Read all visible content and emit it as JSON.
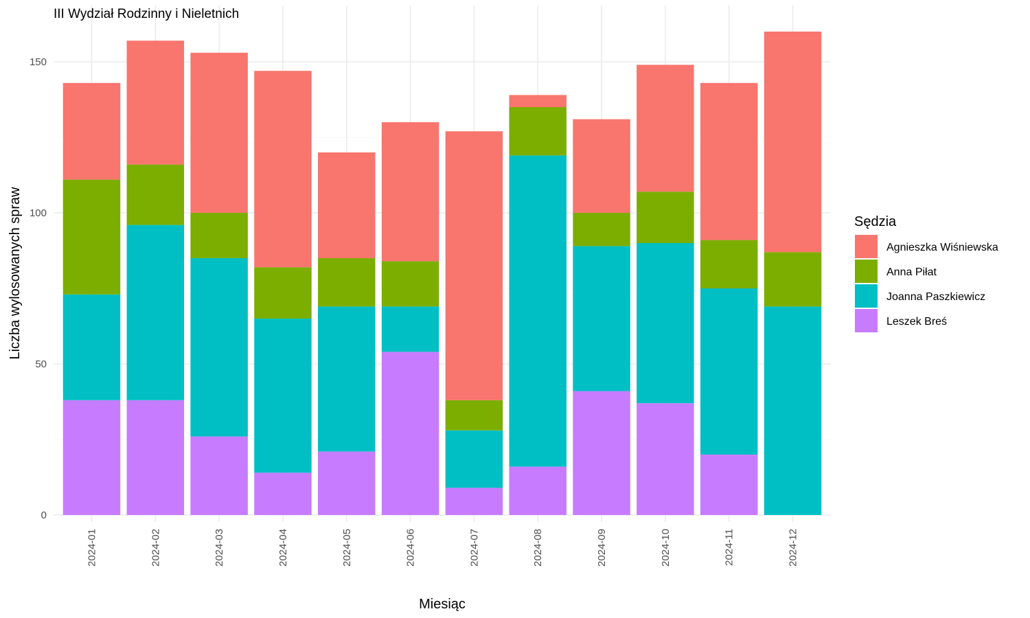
{
  "chart_data": {
    "type": "bar",
    "stacked": true,
    "title": "III Wydział Rodzinny i Nieletnich",
    "xlabel": "Miesiąc",
    "ylabel": "Liczba wylosowanych spraw",
    "ylim": [
      0,
      160
    ],
    "yticks": [
      0,
      50,
      100,
      150
    ],
    "grid": true,
    "legend_title": "Sędzia",
    "legend_position": "right",
    "categories": [
      "2024-01",
      "2024-02",
      "2024-03",
      "2024-04",
      "2024-05",
      "2024-06",
      "2024-07",
      "2024-08",
      "2024-09",
      "2024-10",
      "2024-11",
      "2024-12"
    ],
    "series": [
      {
        "name": "Leszek Breś",
        "color": "#C77CFF",
        "values": [
          38,
          38,
          26,
          14,
          21,
          54,
          9,
          16,
          41,
          37,
          20,
          0
        ]
      },
      {
        "name": "Joanna Paszkiewicz",
        "color": "#00BFC4",
        "values": [
          35,
          58,
          59,
          51,
          48,
          15,
          19,
          103,
          48,
          53,
          55,
          69
        ]
      },
      {
        "name": "Anna Piłat",
        "color": "#7CAE00",
        "values": [
          38,
          20,
          15,
          17,
          16,
          15,
          10,
          16,
          11,
          17,
          16,
          18
        ]
      },
      {
        "name": "Agnieszka Wiśniewska",
        "color": "#F8766D",
        "values": [
          32,
          41,
          53,
          65,
          35,
          46,
          89,
          4,
          31,
          42,
          52,
          73
        ]
      }
    ],
    "legend_order": [
      "Agnieszka Wiśniewska",
      "Anna Piłat",
      "Joanna Paszkiewicz",
      "Leszek Breś"
    ]
  }
}
